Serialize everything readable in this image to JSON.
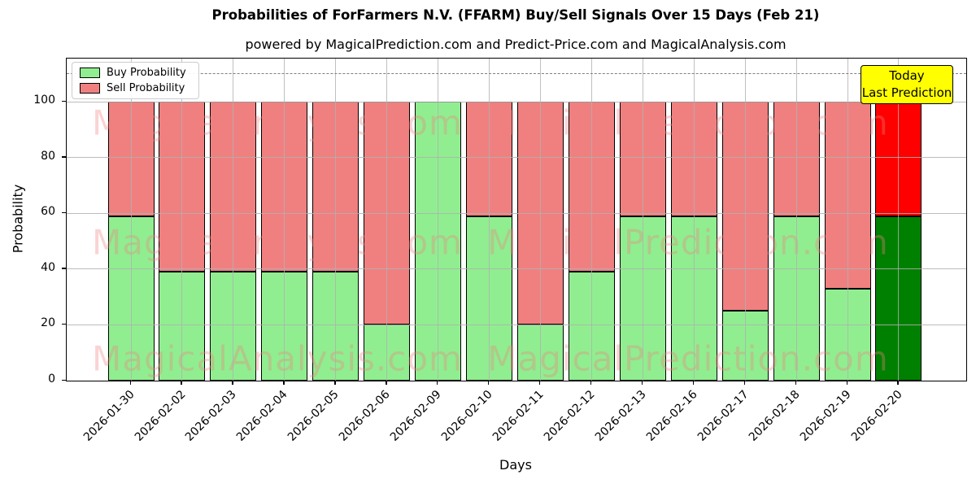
{
  "title": "Probabilities of ForFarmers N.V. (FFARM) Buy/Sell Signals Over 15 Days (Feb 21)",
  "subtitle": "powered by MagicalPrediction.com and Predict-Price.com and MagicalAnalysis.com",
  "legend": {
    "items": [
      {
        "label": "Buy Probability",
        "color": "#90ee90"
      },
      {
        "label": "Sell Probability",
        "color": "#f08080"
      }
    ]
  },
  "annotation_box": {
    "lines": [
      "Today",
      "Last Prediction"
    ],
    "bg_color": "#ffff00",
    "border_color": "#000000"
  },
  "watermarks": {
    "left_text": "MagicalAnalysis.com",
    "right_text": "MagicalPrediction.com",
    "color": "rgba(240,128,128,0.35)"
  },
  "axes": {
    "xlabel": "Days",
    "ylabel": "Probability",
    "yticks": [
      0,
      20,
      40,
      60,
      80,
      100
    ]
  },
  "colors": {
    "buy": "#90ee90",
    "sell": "#f08080",
    "today_buy": "#008000",
    "today_sell": "#ff0000",
    "grid": "#b0b0b0",
    "dashed_threshold": "#7f7f7f"
  },
  "chart_data": {
    "type": "bar",
    "stacked": true,
    "title": "Probabilities of ForFarmers N.V. (FFARM) Buy/Sell Signals Over 15 Days (Feb 21)",
    "xlabel": "Days",
    "ylabel": "Probability",
    "ylim": [
      0,
      115.5
    ],
    "grid": true,
    "legend_position": "upper left",
    "threshold_dashed_line_y": 110,
    "categories": [
      "2026-01-30",
      "2026-02-02",
      "2026-02-03",
      "2026-02-04",
      "2026-02-05",
      "2026-02-06",
      "2026-02-09",
      "2026-02-10",
      "2026-02-11",
      "2026-02-12",
      "2026-02-13",
      "2026-02-16",
      "2026-02-17",
      "2026-02-18",
      "2026-02-19",
      "2026-02-20"
    ],
    "series": [
      {
        "name": "Buy Probability",
        "color": "#90ee90",
        "today_color": "#008000",
        "values": [
          59,
          39,
          39,
          39,
          39,
          20,
          100,
          59,
          20,
          39,
          59,
          59,
          25,
          59,
          33,
          59
        ]
      },
      {
        "name": "Sell Probability",
        "color": "#f08080",
        "today_color": "#ff0000",
        "values": [
          41,
          61,
          61,
          61,
          61,
          80,
          0,
          41,
          80,
          61,
          41,
          41,
          75,
          41,
          67,
          41
        ]
      }
    ],
    "today_index": 15
  }
}
